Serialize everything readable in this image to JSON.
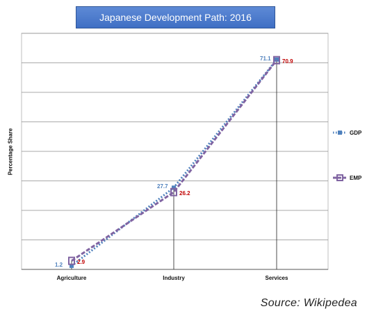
{
  "chart_data": {
    "type": "line",
    "title": "Japanese Development Path: 2016",
    "ylabel": "Percentage Share",
    "xlabel": "",
    "categories": [
      "Agriculture",
      "Industry",
      "Services"
    ],
    "series": [
      {
        "name": "GDP",
        "values": [
          1.2,
          27.7,
          71.1
        ],
        "color": "#4f81bd",
        "style": "dotted"
      },
      {
        "name": "EMP",
        "values": [
          2.9,
          26.2,
          70.9
        ],
        "color": "#8064a2",
        "style": "dashed"
      }
    ],
    "ylim": [
      0,
      80
    ],
    "grid": true,
    "legend": "right"
  },
  "source": "Source:  Wikipedea"
}
